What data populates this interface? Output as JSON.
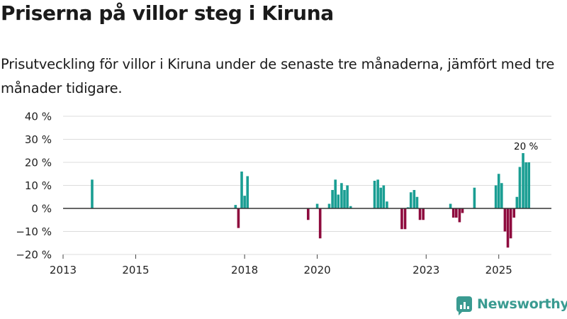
{
  "title": "Priserna på villor steg i Kiruna",
  "subtitle": "Prisutveckling för villor i Kiruna under de senaste tre månaderna, jämfört med tre månader tidigare.",
  "brand": "Newsworthy",
  "colors": {
    "positive": "#1a9e93",
    "negative": "#8e0b3e",
    "brand": "#3a9b91"
  },
  "chart_data": {
    "type": "bar",
    "title": "Priserna på villor steg i Kiruna",
    "subtitle": "Prisutveckling för villor i Kiruna under de senaste tre månaderna, jämfört med tre månader tidigare.",
    "xlabel": "",
    "ylabel": "",
    "xlim": [
      2013.0,
      2026.45
    ],
    "ylim": [
      -20,
      40
    ],
    "y_ticks": [
      {
        "value": 40,
        "label": "40 %"
      },
      {
        "value": 30,
        "label": "30 %"
      },
      {
        "value": 20,
        "label": "20 %"
      },
      {
        "value": 10,
        "label": "10 %"
      },
      {
        "value": 0,
        "label": "0 %"
      },
      {
        "value": -10,
        "label": "−10 %"
      },
      {
        "value": -20,
        "label": "−20 %"
      }
    ],
    "x_ticks": [
      {
        "value": 2013,
        "label": "2013"
      },
      {
        "value": 2015,
        "label": "2015"
      },
      {
        "value": 2018,
        "label": "2018"
      },
      {
        "value": 2020,
        "label": "2020"
      },
      {
        "value": 2023,
        "label": "2023"
      },
      {
        "value": 2025,
        "label": "2025"
      }
    ],
    "grid": true,
    "annotation": {
      "text": "20 %",
      "x": 2025.79,
      "y": 20
    },
    "series": [
      {
        "x": [
          2013.8,
          2017.75,
          2017.83,
          2017.92,
          2018.0,
          2018.08,
          2019.75,
          2020.0,
          2020.08,
          2020.33,
          2020.42,
          2020.5,
          2020.58,
          2020.67,
          2020.75,
          2020.83,
          2020.92,
          2021.58,
          2021.67,
          2021.75,
          2021.83,
          2021.92,
          2022.33,
          2022.42,
          2022.5,
          2022.58,
          2022.67,
          2022.75,
          2022.83,
          2022.92,
          2023.67,
          2023.75,
          2023.83,
          2023.92,
          2024.0,
          2024.33,
          2024.92,
          2025.0,
          2025.08,
          2025.17,
          2025.25,
          2025.33,
          2025.42,
          2025.5,
          2025.58,
          2025.67,
          2025.75,
          2025.83
        ],
        "values": [
          12.5,
          1.5,
          -8.5,
          16,
          5.5,
          14,
          -5,
          2,
          -13,
          2,
          8,
          12.5,
          6,
          11,
          8,
          10,
          1,
          12,
          12.5,
          9,
          10,
          3,
          -9,
          -9,
          0.5,
          7,
          8,
          5,
          -5,
          -5,
          2,
          -4,
          -4,
          -6,
          -2,
          9,
          10,
          15,
          11,
          -10,
          -17,
          -13,
          -4,
          5,
          18,
          24,
          20,
          20
        ]
      }
    ]
  }
}
